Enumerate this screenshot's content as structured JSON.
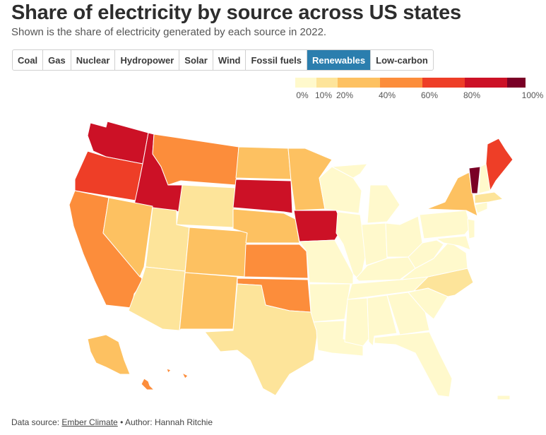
{
  "title": "Share of electricity by source across US states",
  "subtitle": "Shown is the share of electricity generated by each source in 2022.",
  "tabs": [
    {
      "label": "Coal",
      "active": false
    },
    {
      "label": "Gas",
      "active": false
    },
    {
      "label": "Nuclear",
      "active": false
    },
    {
      "label": "Hydropower",
      "active": false
    },
    {
      "label": "Solar",
      "active": false
    },
    {
      "label": "Wind",
      "active": false
    },
    {
      "label": "Fossil fuels",
      "active": false
    },
    {
      "label": "Renewables",
      "active": true
    },
    {
      "label": "Low-carbon",
      "active": false
    }
  ],
  "legend": {
    "bins": [
      {
        "from": 0,
        "to": 10,
        "color": "#fff9cc"
      },
      {
        "from": 10,
        "to": 20,
        "color": "#fde49a"
      },
      {
        "from": 20,
        "to": 40,
        "color": "#fdc161"
      },
      {
        "from": 40,
        "to": 60,
        "color": "#fc8d3b"
      },
      {
        "from": 60,
        "to": 80,
        "color": "#ee3e27"
      },
      {
        "from": 80,
        "to": 100,
        "color": "#cc1126"
      },
      {
        "from": 100,
        "to": 100,
        "color": "#7a0026"
      }
    ],
    "ticks": [
      "0%",
      "10%",
      "20%",
      "40%",
      "60%",
      "80%",
      "100%"
    ]
  },
  "colors": {
    "accent": "#2b7eae",
    "border": "#d0d0d0"
  },
  "footer": {
    "prefix": "Data source: ",
    "source_link": "Ember Climate",
    "author": " • Author: Hannah Ritchie"
  }
}
